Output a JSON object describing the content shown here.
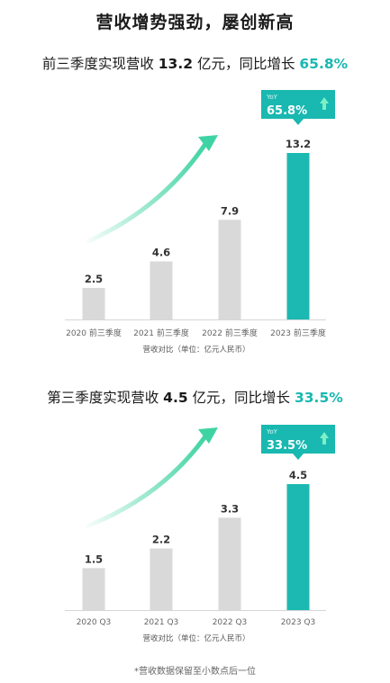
{
  "main_title": "营收增势强劲，屡创新高",
  "colors": {
    "bar": "#d9d9d9",
    "highlight": "#1bb9b1",
    "arrow": "#3fd3a3",
    "badge": "#19b8b0"
  },
  "section1": {
    "title_prefix": "前三季度实现营收 ",
    "title_value": "13.2",
    "title_mid": " 亿元，同比增长 ",
    "title_growth": "65.8%"
  },
  "section2": {
    "title_prefix": "第三季度实现营收 ",
    "title_value": "4.5",
    "title_mid": " 亿元，同比增长 ",
    "title_growth": "33.5%"
  },
  "footnote": "*营收数据保留至小数点后一位",
  "chart_data": [
    {
      "type": "bar",
      "categories": [
        "2020 前三季度",
        "2021 前三季度",
        "2022 前三季度",
        "2023 前三季度"
      ],
      "values": [
        2.5,
        4.6,
        7.9,
        13.2
      ],
      "value_labels": [
        "2.5",
        "4.6",
        "7.9",
        "13.2"
      ],
      "highlight_index": 3,
      "xlabel": "营收对比（单位：亿元人民币）",
      "ylim": [
        0,
        13.2
      ],
      "badge": {
        "label": "YoY",
        "value": "65.8%",
        "icon": "up-arrow-icon"
      }
    },
    {
      "type": "bar",
      "categories": [
        "2020 Q3",
        "2021 Q3",
        "2022 Q3",
        "2023 Q3"
      ],
      "values": [
        1.5,
        2.2,
        3.3,
        4.5
      ],
      "value_labels": [
        "1.5",
        "2.2",
        "3.3",
        "4.5"
      ],
      "highlight_index": 3,
      "xlabel": "营收对比（单位：亿元人民币）",
      "ylim": [
        0,
        4.5
      ],
      "badge": {
        "label": "YoY",
        "value": "33.5%",
        "icon": "up-arrow-icon"
      }
    }
  ]
}
